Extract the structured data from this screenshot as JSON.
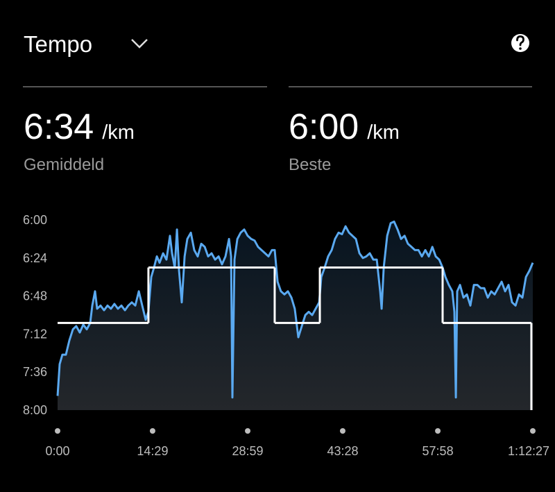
{
  "header": {
    "title": "Tempo"
  },
  "stats": [
    {
      "value": "6:34",
      "unit": "/km",
      "label": "Gemiddeld"
    },
    {
      "value": "6:00",
      "unit": "/km",
      "label": "Beste"
    }
  ],
  "chart_data": {
    "type": "line",
    "ylim": [
      480,
      360
    ],
    "yticks": [
      {
        "value": 360,
        "label": "6:00"
      },
      {
        "value": 384,
        "label": "6:24"
      },
      {
        "value": 408,
        "label": "6:48"
      },
      {
        "value": 432,
        "label": "7:12"
      },
      {
        "value": 456,
        "label": "7:36"
      },
      {
        "value": 480,
        "label": "8:00"
      }
    ],
    "xlim": [
      0,
      4347
    ],
    "xticks": [
      {
        "value": 0,
        "label": "0:00"
      },
      {
        "value": 869,
        "label": "14:29"
      },
      {
        "value": 1739,
        "label": "28:59"
      },
      {
        "value": 2608,
        "label": "43:28"
      },
      {
        "value": 3478,
        "label": "57:58"
      },
      {
        "value": 4347,
        "label": "1:12:27"
      }
    ],
    "series": [
      {
        "color": "#5aa9f0",
        "x": [
          0,
          19,
          44,
          76,
          108,
          140,
          171,
          203,
          235,
          267,
          298,
          317,
          343,
          362,
          393,
          425,
          457,
          488,
          520,
          552,
          584,
          616,
          647,
          679,
          711,
          743,
          774,
          806,
          831,
          857,
          882,
          908,
          933,
          965,
          996,
          1028,
          1047,
          1072,
          1092,
          1111,
          1136,
          1162,
          1187,
          1219,
          1250,
          1282,
          1314,
          1346,
          1377,
          1409,
          1441,
          1473,
          1504,
          1536,
          1568,
          1587,
          1599,
          1618,
          1644,
          1675,
          1707,
          1739,
          1771,
          1802,
          1834,
          1866,
          1898,
          1929,
          1961,
          1986,
          2012,
          2043,
          2075,
          2107,
          2139,
          2170,
          2202,
          2234,
          2266,
          2297,
          2329,
          2361,
          2393,
          2412,
          2443,
          2475,
          2507,
          2538,
          2570,
          2602,
          2634,
          2666,
          2697,
          2729,
          2761,
          2793,
          2824,
          2856,
          2888,
          2920,
          2951,
          2964,
          2983,
          3015,
          3047,
          3078,
          3110,
          3142,
          3174,
          3205,
          3237,
          3269,
          3301,
          3332,
          3364,
          3396,
          3428,
          3459,
          3491,
          3522,
          3548,
          3579,
          3611,
          3630,
          3643,
          3655,
          3681,
          3713,
          3744,
          3776,
          3808,
          3840,
          3871,
          3903,
          3935,
          3967,
          3998,
          4030,
          4062,
          4094,
          4125,
          4157,
          4189,
          4221,
          4252,
          4284,
          4316,
          4347
        ],
        "values": [
          471,
          451,
          445,
          445,
          436,
          429,
          427,
          431,
          426,
          429,
          425,
          414,
          405,
          416,
          414,
          417,
          414,
          416,
          413,
          416,
          414,
          417,
          414,
          412,
          414,
          405,
          414,
          423,
          418,
          396,
          390,
          383,
          387,
          381,
          385,
          370,
          381,
          390,
          366,
          392,
          412,
          383,
          372,
          368,
          379,
          383,
          375,
          377,
          383,
          381,
          385,
          383,
          388,
          383,
          372,
          383,
          472,
          385,
          372,
          368,
          366,
          370,
          372,
          373,
          377,
          379,
          381,
          383,
          379,
          379,
          399,
          405,
          407,
          405,
          409,
          416,
          434,
          427,
          420,
          418,
          420,
          416,
          412,
          396,
          390,
          383,
          379,
          372,
          368,
          369,
          364,
          368,
          370,
          372,
          381,
          384,
          383,
          381,
          385,
          385,
          405,
          416,
          390,
          370,
          362,
          361,
          366,
          372,
          370,
          375,
          377,
          379,
          379,
          383,
          379,
          383,
          377,
          383,
          385,
          390,
          396,
          401,
          405,
          418,
          472,
          405,
          401,
          409,
          407,
          414,
          401,
          401,
          403,
          403,
          409,
          405,
          407,
          403,
          399,
          405,
          401,
          412,
          414,
          407,
          409,
          396,
          392,
          387
        ]
      },
      {
        "type": "step",
        "color": "#ffffff",
        "bins": [
          0,
          831,
          1986,
          2399,
          3522,
          4334
        ],
        "values": [
          425,
          390,
          425,
          390,
          425
        ]
      }
    ]
  }
}
